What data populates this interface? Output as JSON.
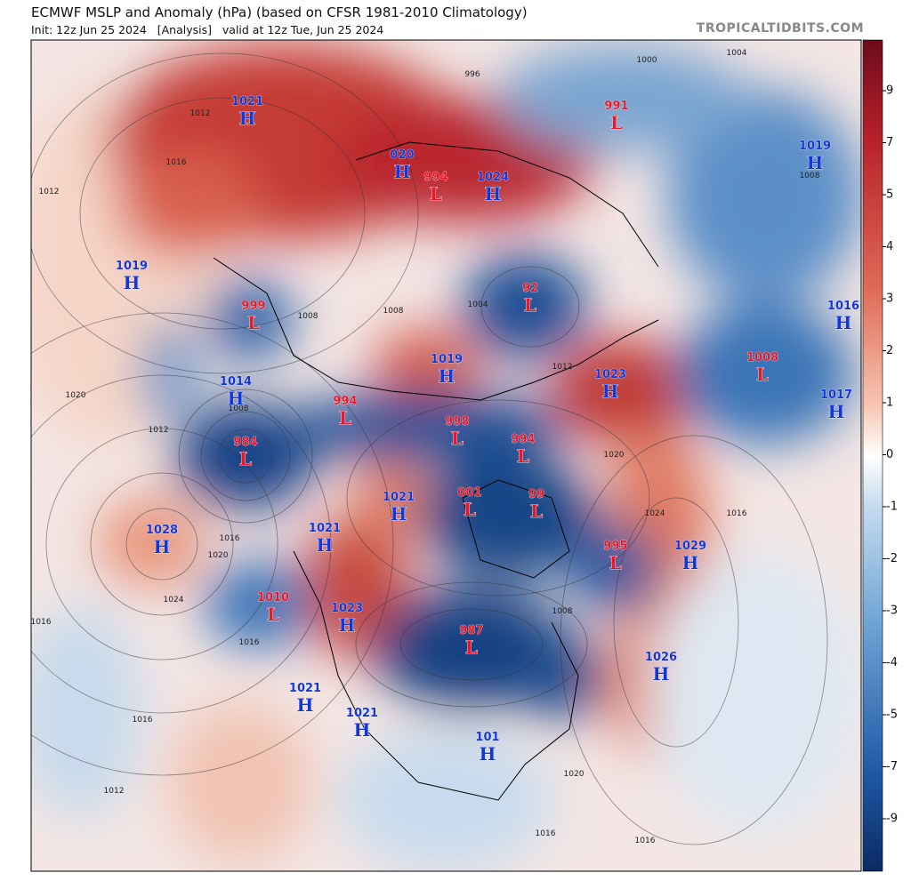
{
  "header": {
    "title": "ECMWF MSLP and Anomaly (hPa) (based on CFSR 1981-2010 Climatology)",
    "subtitle": "Init: 12z Jun 25 2024   [Analysis]   valid at 12z Tue, Jun 25 2024",
    "credit": "TROPICALTIDBITS.COM"
  },
  "colorbar": {
    "ticks": [
      9,
      7,
      5,
      4,
      3,
      2,
      1,
      0,
      -1,
      -2,
      -3,
      -4,
      -5,
      -7,
      -9
    ]
  },
  "centers": [
    {
      "value": "1021",
      "letter": "H"
    },
    {
      "value": "1019",
      "letter": "H"
    },
    {
      "value": "999",
      "letter": "L"
    },
    {
      "value": "1014",
      "letter": "H"
    },
    {
      "value": "984",
      "letter": "L"
    },
    {
      "value": "1028",
      "letter": "H"
    },
    {
      "value": "1010",
      "letter": "L"
    },
    {
      "value": "1021",
      "letter": "H"
    },
    {
      "value": "1023",
      "letter": "H"
    },
    {
      "value": "1021",
      "letter": "H"
    },
    {
      "value": "994",
      "letter": "L"
    },
    {
      "value": "998",
      "letter": "L"
    },
    {
      "value": "994",
      "letter": "L"
    },
    {
      "value": "001",
      "letter": "L"
    },
    {
      "value": "99",
      "letter": "L"
    },
    {
      "value": "1019",
      "letter": "H"
    },
    {
      "value": "92",
      "letter": "L"
    },
    {
      "value": "020",
      "letter": "H"
    },
    {
      "value": "994",
      "letter": "L"
    },
    {
      "value": "1024",
      "letter": "H"
    },
    {
      "value": "991",
      "letter": "L"
    },
    {
      "value": "1019",
      "letter": "H"
    },
    {
      "value": "1016",
      "letter": "H"
    },
    {
      "value": "1008",
      "letter": "L"
    },
    {
      "value": "1017",
      "letter": "H"
    },
    {
      "value": "1023",
      "letter": "H"
    },
    {
      "value": "995",
      "letter": "L"
    },
    {
      "value": "1029",
      "letter": "H"
    },
    {
      "value": "1026",
      "letter": "H"
    },
    {
      "value": "987",
      "letter": "L"
    },
    {
      "value": "1021",
      "letter": "H"
    },
    {
      "value": "1021",
      "letter": "H"
    },
    {
      "value": "101",
      "letter": "H"
    }
  ],
  "contour_labels": [
    "1012",
    "1016",
    "1012",
    "1020",
    "1012",
    "1008",
    "1016",
    "1020",
    "1024",
    "1016",
    "1016",
    "1016",
    "1012",
    "1008",
    "1004",
    "1000",
    "1004",
    "996",
    "1008",
    "1016",
    "1020",
    "1024",
    "1020",
    "1016",
    "1016",
    "1012",
    "1008",
    "1008"
  ]
}
